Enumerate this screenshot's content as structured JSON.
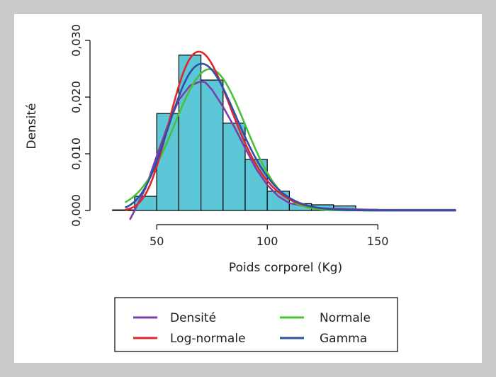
{
  "chart_data": {
    "type": "histogram",
    "xlabel": "Poids corporel (Kg)",
    "ylabel": "Densité",
    "xlim": [
      25,
      190
    ],
    "ylim": [
      0,
      0.03
    ],
    "xticks": [
      {
        "value": 50,
        "label": "50"
      },
      {
        "value": 100,
        "label": "100"
      },
      {
        "value": 150,
        "label": "150"
      }
    ],
    "yticks": [
      {
        "value": 0,
        "label": "0,000"
      },
      {
        "value": 0.01,
        "label": "0,010"
      },
      {
        "value": 0.02,
        "label": "0,020"
      },
      {
        "value": 0.03,
        "label": "0,030"
      }
    ],
    "bin_color": "#5cc7d6",
    "bins": [
      {
        "x0": 30,
        "x1": 40,
        "density": 0.0001
      },
      {
        "x0": 40,
        "x1": 50,
        "density": 0.0025
      },
      {
        "x0": 50,
        "x1": 60,
        "density": 0.0171
      },
      {
        "x0": 60,
        "x1": 70,
        "density": 0.0274
      },
      {
        "x0": 70,
        "x1": 80,
        "density": 0.023
      },
      {
        "x0": 80,
        "x1": 90,
        "density": 0.0154
      },
      {
        "x0": 90,
        "x1": 100,
        "density": 0.009
      },
      {
        "x0": 100,
        "x1": 110,
        "density": 0.0034
      },
      {
        "x0": 110,
        "x1": 120,
        "density": 0.0012
      },
      {
        "x0": 120,
        "x1": 130,
        "density": 0.001
      },
      {
        "x0": 130,
        "x1": 140,
        "density": 0.0008
      },
      {
        "x0": 140,
        "x1": 150,
        "density": 0.0002
      },
      {
        "x0": 150,
        "x1": 160,
        "density": 0.0001
      },
      {
        "x0": 160,
        "x1": 170,
        "density": 0.0001
      },
      {
        "x0": 170,
        "x1": 180,
        "density": 0.0001
      }
    ],
    "curves": [
      {
        "name": "Densité",
        "color": "#7b3fa8",
        "kind": "density",
        "x": [
          38,
          40,
          45,
          50,
          55,
          60,
          65,
          70,
          72,
          75,
          80,
          85,
          90,
          95,
          100,
          105,
          110,
          120,
          130,
          140,
          150,
          160,
          170,
          180,
          185
        ],
        "y": [
          -0.0015,
          0.0,
          0.004,
          0.0096,
          0.015,
          0.0195,
          0.022,
          0.0228,
          0.0226,
          0.0213,
          0.0183,
          0.0148,
          0.011,
          0.0073,
          0.0045,
          0.0025,
          0.0013,
          0.0005,
          0.0003,
          0.0002,
          0.0001,
          0.0001,
          0.0001,
          0.0001,
          0.0001
        ]
      },
      {
        "name": "Normale",
        "color": "#4cbf3a",
        "kind": "normal",
        "mean": 74,
        "sd": 16
      },
      {
        "name": "Log-normale",
        "color": "#e0262c",
        "kind": "lognormal",
        "meanlog": 4.276,
        "sdlog": 0.202
      },
      {
        "name": "Gamma",
        "color": "#2e4fa3",
        "kind": "gamma",
        "shape": 22,
        "scale": 3.35
      }
    ],
    "legend": {
      "placement": "bottom-center",
      "items": [
        {
          "label": "Densité",
          "color": "#7b3fa8"
        },
        {
          "label": "Normale",
          "color": "#4cbf3a"
        },
        {
          "label": "Log-normale",
          "color": "#e0262c"
        },
        {
          "label": "Gamma",
          "color": "#2e4fa3"
        }
      ]
    }
  }
}
